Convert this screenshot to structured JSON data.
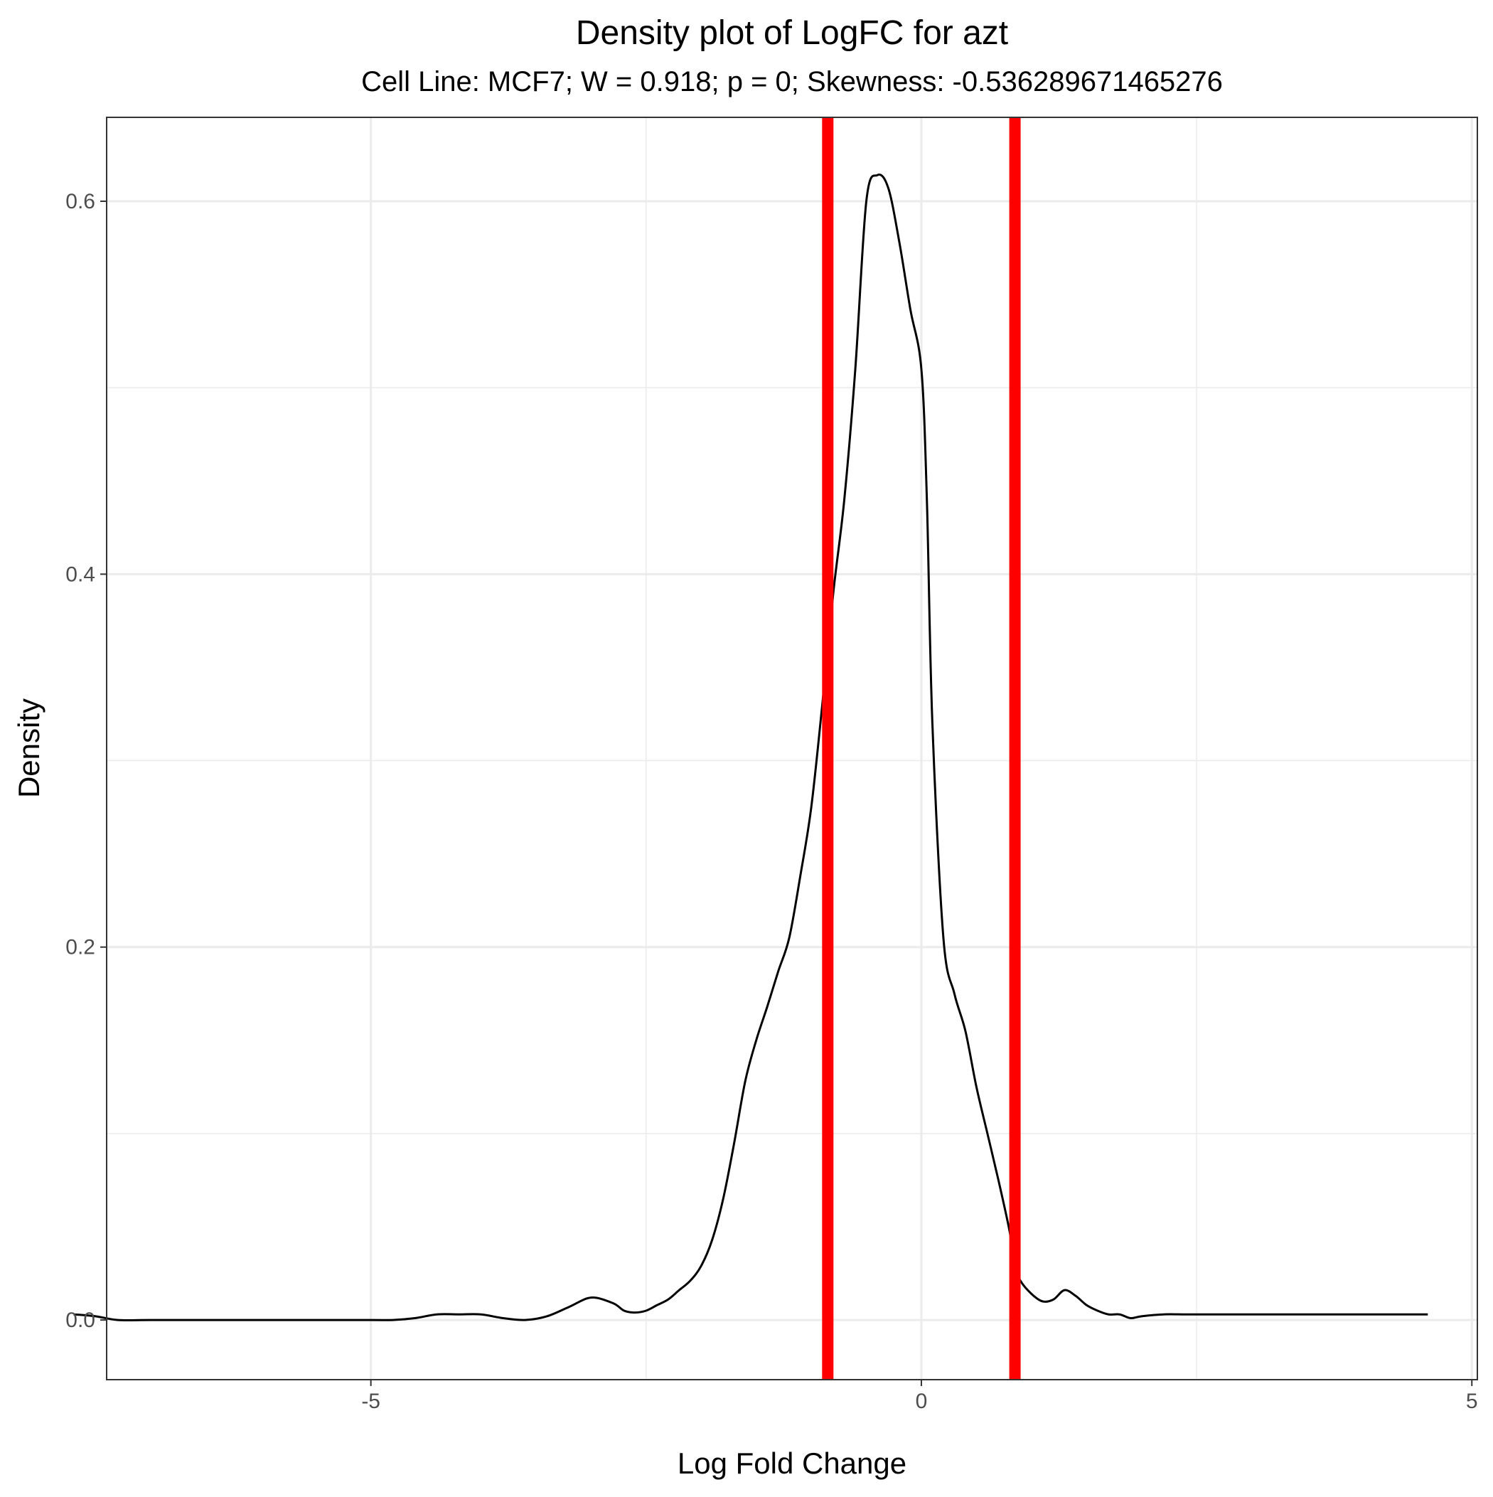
{
  "chart_data": {
    "type": "line",
    "title": "Density plot of LogFC for azt",
    "subtitle": "Cell Line: MCF7; W = 0.918; p = 0; Skewness: -0.536289671465276",
    "xlabel": "Log Fold Change",
    "ylabel": "Density",
    "xlim": [
      -7.4,
      5.05
    ],
    "ylim": [
      -0.032,
      0.645
    ],
    "x_ticks": [
      -5,
      0,
      5
    ],
    "x_tick_labels": [
      "-5",
      "0",
      "5"
    ],
    "y_ticks": [
      0.0,
      0.2,
      0.4,
      0.6
    ],
    "y_tick_labels": [
      "0.0",
      "0.2",
      "0.4",
      "0.6"
    ],
    "grid": true,
    "background": "#ffffff",
    "grid_color": "#ebebeb",
    "line_color": "#000000",
    "vline_color": "#ff0000",
    "vlines": [
      -0.85,
      0.85
    ],
    "series": [
      {
        "x": [
          -7.7,
          -7.5,
          -7.3,
          -7.0,
          -6.5,
          -6.0,
          -5.5,
          -5.0,
          -4.8,
          -4.6,
          -4.4,
          -4.2,
          -4.0,
          -3.8,
          -3.6,
          -3.4,
          -3.2,
          -3.0,
          -2.8,
          -2.7,
          -2.6,
          -2.5,
          -2.4,
          -2.3,
          -2.2,
          -2.1,
          -2.0,
          -1.9,
          -1.8,
          -1.7,
          -1.6,
          -1.5,
          -1.4,
          -1.3,
          -1.2,
          -1.1,
          -1.0,
          -0.9,
          -0.8,
          -0.7,
          -0.6,
          -0.5,
          -0.4,
          -0.3,
          -0.2,
          -0.1,
          0.0,
          0.05,
          0.1,
          0.2,
          0.3,
          0.4,
          0.5,
          0.6,
          0.7,
          0.8,
          0.85,
          0.9,
          1.0,
          1.1,
          1.2,
          1.3,
          1.4,
          1.5,
          1.6,
          1.7,
          1.8,
          1.9,
          2.0,
          2.2,
          2.4,
          2.6,
          2.8,
          3.0,
          3.2,
          3.4,
          3.6,
          3.8,
          4.0,
          4.2,
          4.4,
          4.6
        ],
        "y": [
          0.003,
          0.002,
          0.0,
          0.0,
          0.0,
          0.0,
          0.0,
          0.0,
          0.0,
          0.001,
          0.003,
          0.003,
          0.003,
          0.001,
          0.0,
          0.002,
          0.007,
          0.012,
          0.009,
          0.005,
          0.004,
          0.005,
          0.008,
          0.011,
          0.016,
          0.021,
          0.029,
          0.043,
          0.065,
          0.095,
          0.128,
          0.15,
          0.168,
          0.187,
          0.205,
          0.238,
          0.275,
          0.33,
          0.39,
          0.44,
          0.51,
          0.6,
          0.614,
          0.607,
          0.578,
          0.542,
          0.51,
          0.44,
          0.32,
          0.205,
          0.175,
          0.155,
          0.125,
          0.1,
          0.075,
          0.048,
          0.029,
          0.021,
          0.014,
          0.01,
          0.011,
          0.016,
          0.013,
          0.008,
          0.005,
          0.003,
          0.003,
          0.001,
          0.002,
          0.003,
          0.003,
          0.003,
          0.003,
          0.003,
          0.003,
          0.003,
          0.003,
          0.003,
          0.003,
          0.003,
          0.003,
          0.003
        ]
      }
    ]
  }
}
